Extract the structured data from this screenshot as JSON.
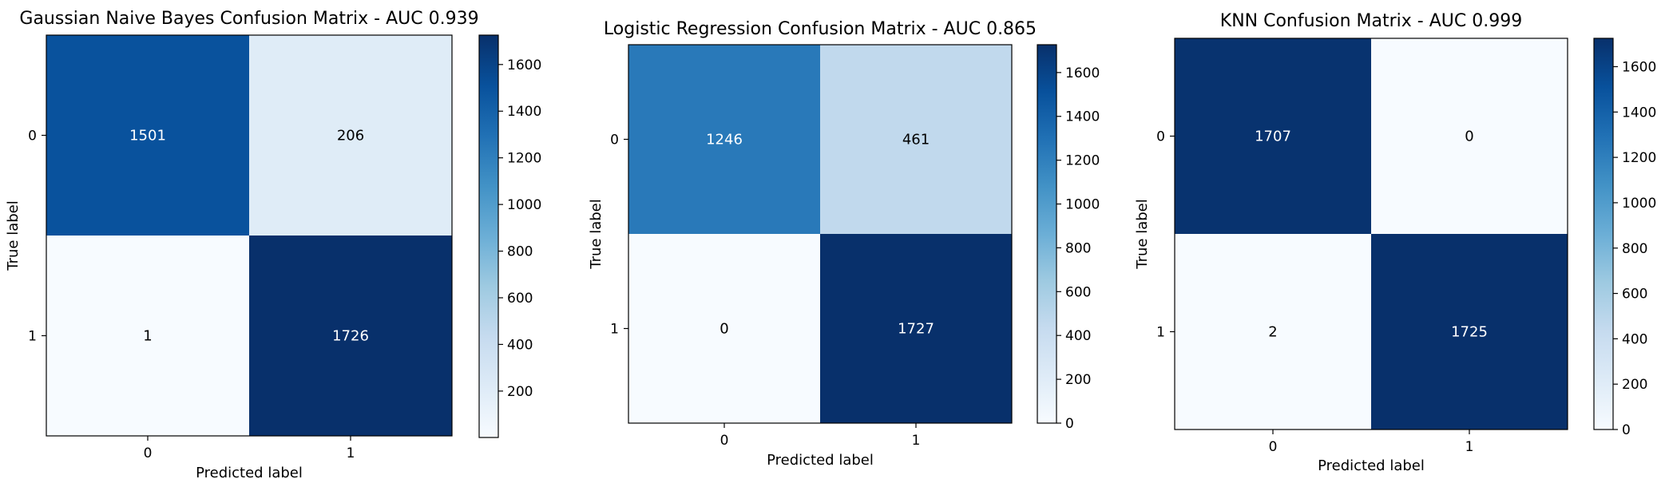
{
  "chart_data": [
    {
      "type": "heatmap",
      "title": "Gaussian Naive Bayes Confusion Matrix - AUC 0.939",
      "xlabel": "Predicted label",
      "ylabel": "True label",
      "x_tick_labels": [
        "0",
        "1"
      ],
      "y_tick_labels": [
        "0",
        "1"
      ],
      "matrix": [
        [
          1501,
          206
        ],
        [
          1,
          1726
        ]
      ],
      "colormap": "Blues",
      "color_range": [
        1,
        1726
      ],
      "colorbar_ticks": [
        200,
        400,
        600,
        800,
        1000,
        1200,
        1400,
        1600
      ]
    },
    {
      "type": "heatmap",
      "title": "Logistic Regression Confusion Matrix - AUC 0.865",
      "xlabel": "Predicted label",
      "ylabel": "True label",
      "x_tick_labels": [
        "0",
        "1"
      ],
      "y_tick_labels": [
        "0",
        "1"
      ],
      "matrix": [
        [
          1246,
          461
        ],
        [
          0,
          1727
        ]
      ],
      "colormap": "Blues",
      "color_range": [
        0,
        1727
      ],
      "colorbar_ticks": [
        0,
        200,
        400,
        600,
        800,
        1000,
        1200,
        1400,
        1600
      ]
    },
    {
      "type": "heatmap",
      "title": "KNN Confusion Matrix - AUC 0.999",
      "xlabel": "Predicted label",
      "ylabel": "True label",
      "x_tick_labels": [
        "0",
        "1"
      ],
      "y_tick_labels": [
        "0",
        "1"
      ],
      "matrix": [
        [
          1707,
          0
        ],
        [
          2,
          1725
        ]
      ],
      "colormap": "Blues",
      "color_range": [
        0,
        1725
      ],
      "colorbar_ticks": [
        0,
        200,
        400,
        600,
        800,
        1000,
        1200,
        1400,
        1600
      ]
    }
  ]
}
